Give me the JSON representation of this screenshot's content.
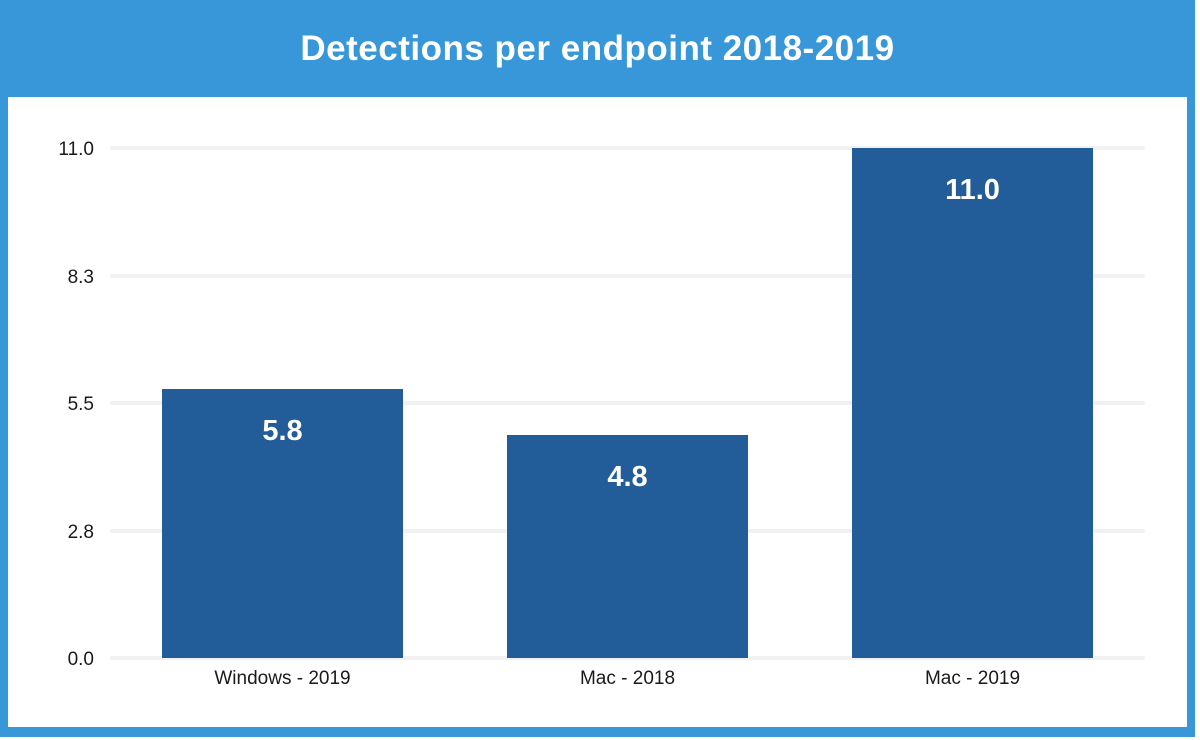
{
  "header": {
    "title": "Detections per endpoint 2018-2019",
    "bg_color": "#3797d8",
    "text_color": "#ffffff"
  },
  "frame": {
    "border_color": "#3797d8",
    "background_color": "#ffffff"
  },
  "chart_data": {
    "type": "bar",
    "title": "Detections per endpoint 2018-2019",
    "categories": [
      "Windows - 2019",
      "Mac - 2018",
      "Mac - 2019"
    ],
    "values": [
      5.8,
      4.8,
      11.0
    ],
    "value_labels": [
      "5.8",
      "4.8",
      "11.0"
    ],
    "xlabel": "",
    "ylabel": "",
    "ylim": [
      0,
      11
    ],
    "yticks": [
      {
        "value": 0,
        "label": "0.0"
      },
      {
        "value": 2.75,
        "label": "2.8"
      },
      {
        "value": 5.5,
        "label": "5.5"
      },
      {
        "value": 8.25,
        "label": "8.3"
      },
      {
        "value": 11,
        "label": "11.0"
      }
    ],
    "grid": true,
    "legend": false,
    "bar_color": "#235d99",
    "bar_label_color": "#ffffff",
    "gridline_color": "#f1f1f1",
    "tick_label_color": "#1a1a1a"
  }
}
